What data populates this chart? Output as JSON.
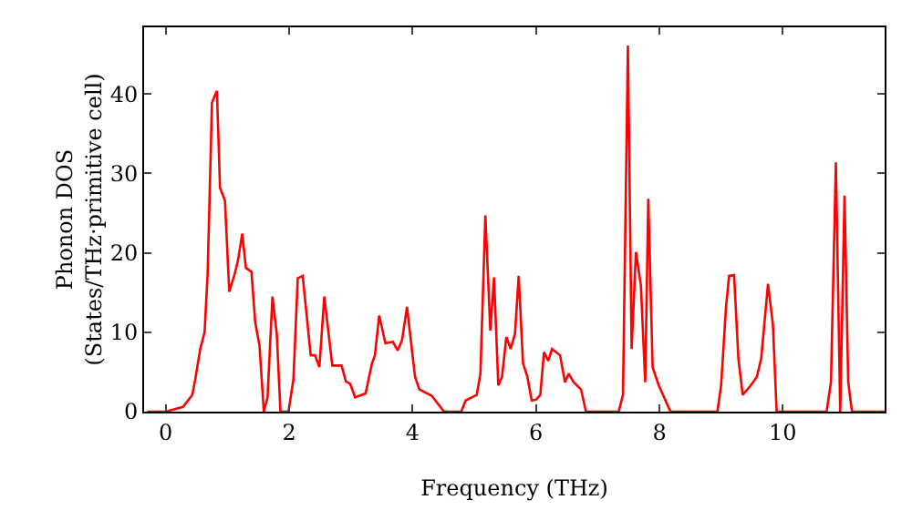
{
  "chart_data": {
    "type": "line",
    "xlabel": "Frequency (THz)",
    "ylabel": "Phonon DOS\n(States/THz·primitive cell)",
    "xlim": [
      -0.35,
      11.65
    ],
    "ylim": [
      0,
      48.4
    ],
    "xticks": [
      0,
      2,
      4,
      6,
      8,
      10
    ],
    "yticks": [
      0,
      10,
      20,
      30,
      40
    ],
    "marker": "none",
    "line_style": "solid",
    "series": [
      {
        "color": "#ff0000",
        "x": [
          -0.3,
          0,
          0.28,
          0.43,
          0.48,
          0.56,
          0.63,
          0.68,
          0.75,
          0.83,
          0.88,
          0.96,
          1.03,
          1.12,
          1.17,
          1.24,
          1.3,
          1.39,
          1.45,
          1.52,
          1.59,
          1.65,
          1.73,
          1.8,
          1.86,
          1.99,
          2.07,
          2.14,
          2.22,
          2.35,
          2.42,
          2.49,
          2.57,
          2.7,
          2.85,
          2.92,
          2.99,
          3.07,
          3.24,
          3.34,
          3.39,
          3.46,
          3.56,
          3.68,
          3.76,
          3.83,
          3.91,
          4.04,
          4.11,
          4.31,
          4.51,
          4.79,
          4.86,
          5.04,
          5.1,
          5.18,
          5.26,
          5.32,
          5.39,
          5.45,
          5.52,
          5.59,
          5.66,
          5.72,
          5.79,
          5.86,
          5.93,
          6.0,
          6.07,
          6.13,
          6.2,
          6.26,
          6.39,
          6.47,
          6.53,
          6.61,
          6.73,
          6.81,
          7.34,
          7.41,
          7.49,
          7.55,
          7.62,
          7.7,
          7.77,
          7.82,
          7.89,
          7.99,
          8.18,
          8.94,
          9.0,
          9.08,
          9.13,
          9.21,
          9.28,
          9.35,
          9.48,
          9.58,
          9.65,
          9.76,
          9.84,
          9.9,
          10.71,
          10.78,
          10.86,
          10.93,
          11.0,
          11.06,
          11.12,
          11.65
        ],
        "values": [
          0,
          0,
          0.6,
          2.1,
          4.1,
          7.9,
          10,
          17.4,
          38.9,
          40.4,
          28.2,
          26.6,
          15.1,
          17.4,
          19,
          22.4,
          18.1,
          17.6,
          11.3,
          8.3,
          0,
          1.8,
          14.5,
          9.8,
          0,
          0,
          4.1,
          16.8,
          17.1,
          7.1,
          7.1,
          5.6,
          14.5,
          5.8,
          5.8,
          3.8,
          3.5,
          1.8,
          2.3,
          6,
          7.1,
          12.1,
          8.6,
          8.8,
          7.7,
          9,
          13.2,
          4.4,
          2.8,
          2,
          0,
          0,
          1.4,
          2.1,
          4.8,
          24.7,
          10.2,
          16.9,
          3.3,
          4.4,
          9.4,
          7.9,
          9.8,
          17.1,
          6.1,
          4.4,
          1.4,
          1.5,
          2.1,
          7.5,
          6.4,
          7.9,
          7.1,
          3.7,
          4.8,
          3.7,
          2.8,
          0,
          0,
          2.1,
          46.1,
          7.9,
          20.1,
          15.9,
          3.7,
          26.8,
          5.6,
          3.3,
          0,
          0,
          3.3,
          13.2,
          17.1,
          17.2,
          6.7,
          2.1,
          3.3,
          4.4,
          6.7,
          16.1,
          10.9,
          0,
          0,
          3.7,
          31.4,
          0,
          27.2,
          3.7,
          0,
          0
        ]
      }
    ]
  }
}
